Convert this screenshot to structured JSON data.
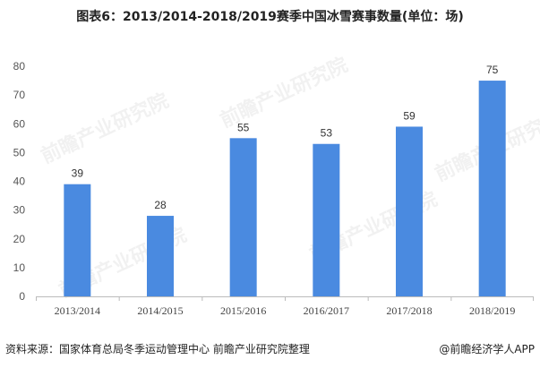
{
  "chart_data": {
    "type": "bar",
    "title": "图表6：2013/2014-2018/2019赛季中国冰雪赛事数量(单位：场)",
    "categories": [
      "2013/2014",
      "2014/2015",
      "2015/2016",
      "2016/2017",
      "2017/2018",
      "2018/2019"
    ],
    "values": [
      39,
      28,
      55,
      53,
      59,
      75
    ],
    "xlabel": "",
    "ylabel": "",
    "ylim": [
      0,
      80
    ],
    "yticks": [
      0,
      10,
      20,
      30,
      40,
      50,
      60,
      70,
      80
    ],
    "grid": false,
    "data_labels": true,
    "bar_color": "#4a8ae0"
  },
  "footer": {
    "source": "资料来源：国家体育总局冬季运动管理中心 前瞻产业研究院整理",
    "brand": "@前瞻经济学人APP"
  },
  "watermark": "前瞻产业研究院"
}
